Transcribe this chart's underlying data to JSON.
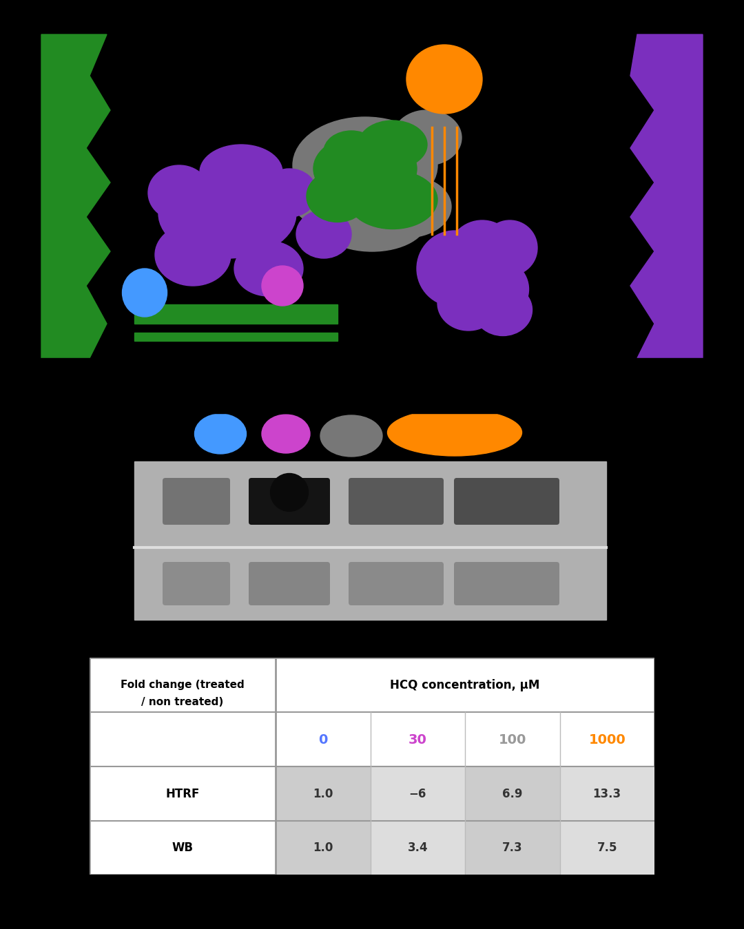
{
  "background_color": "#000000",
  "table": {
    "header_left": "Fold change (treated\n/ non treated)",
    "header_right": "HCQ concentration, μM",
    "concentrations": [
      "0",
      "30",
      "100",
      "1000"
    ],
    "concentration_colors": [
      "#5577ff",
      "#cc44cc",
      "#999999",
      "#ff8800"
    ],
    "htrf_values": [
      "1.0",
      "−6",
      "6.9",
      "13.3"
    ],
    "wb_values": [
      "1.0",
      "3.4",
      "7.3",
      "7.5"
    ],
    "row_labels": [
      "HTRF",
      "WB"
    ]
  },
  "fig_width": 10.8,
  "fig_height": 13.49,
  "dpi": 100,
  "green_color": "#228B22",
  "purple_color": "#7B2FBE",
  "gray_color": "#777777",
  "orange_color": "#ff8800",
  "blue_color": "#4499ff",
  "magenta_color": "#cc44cc"
}
